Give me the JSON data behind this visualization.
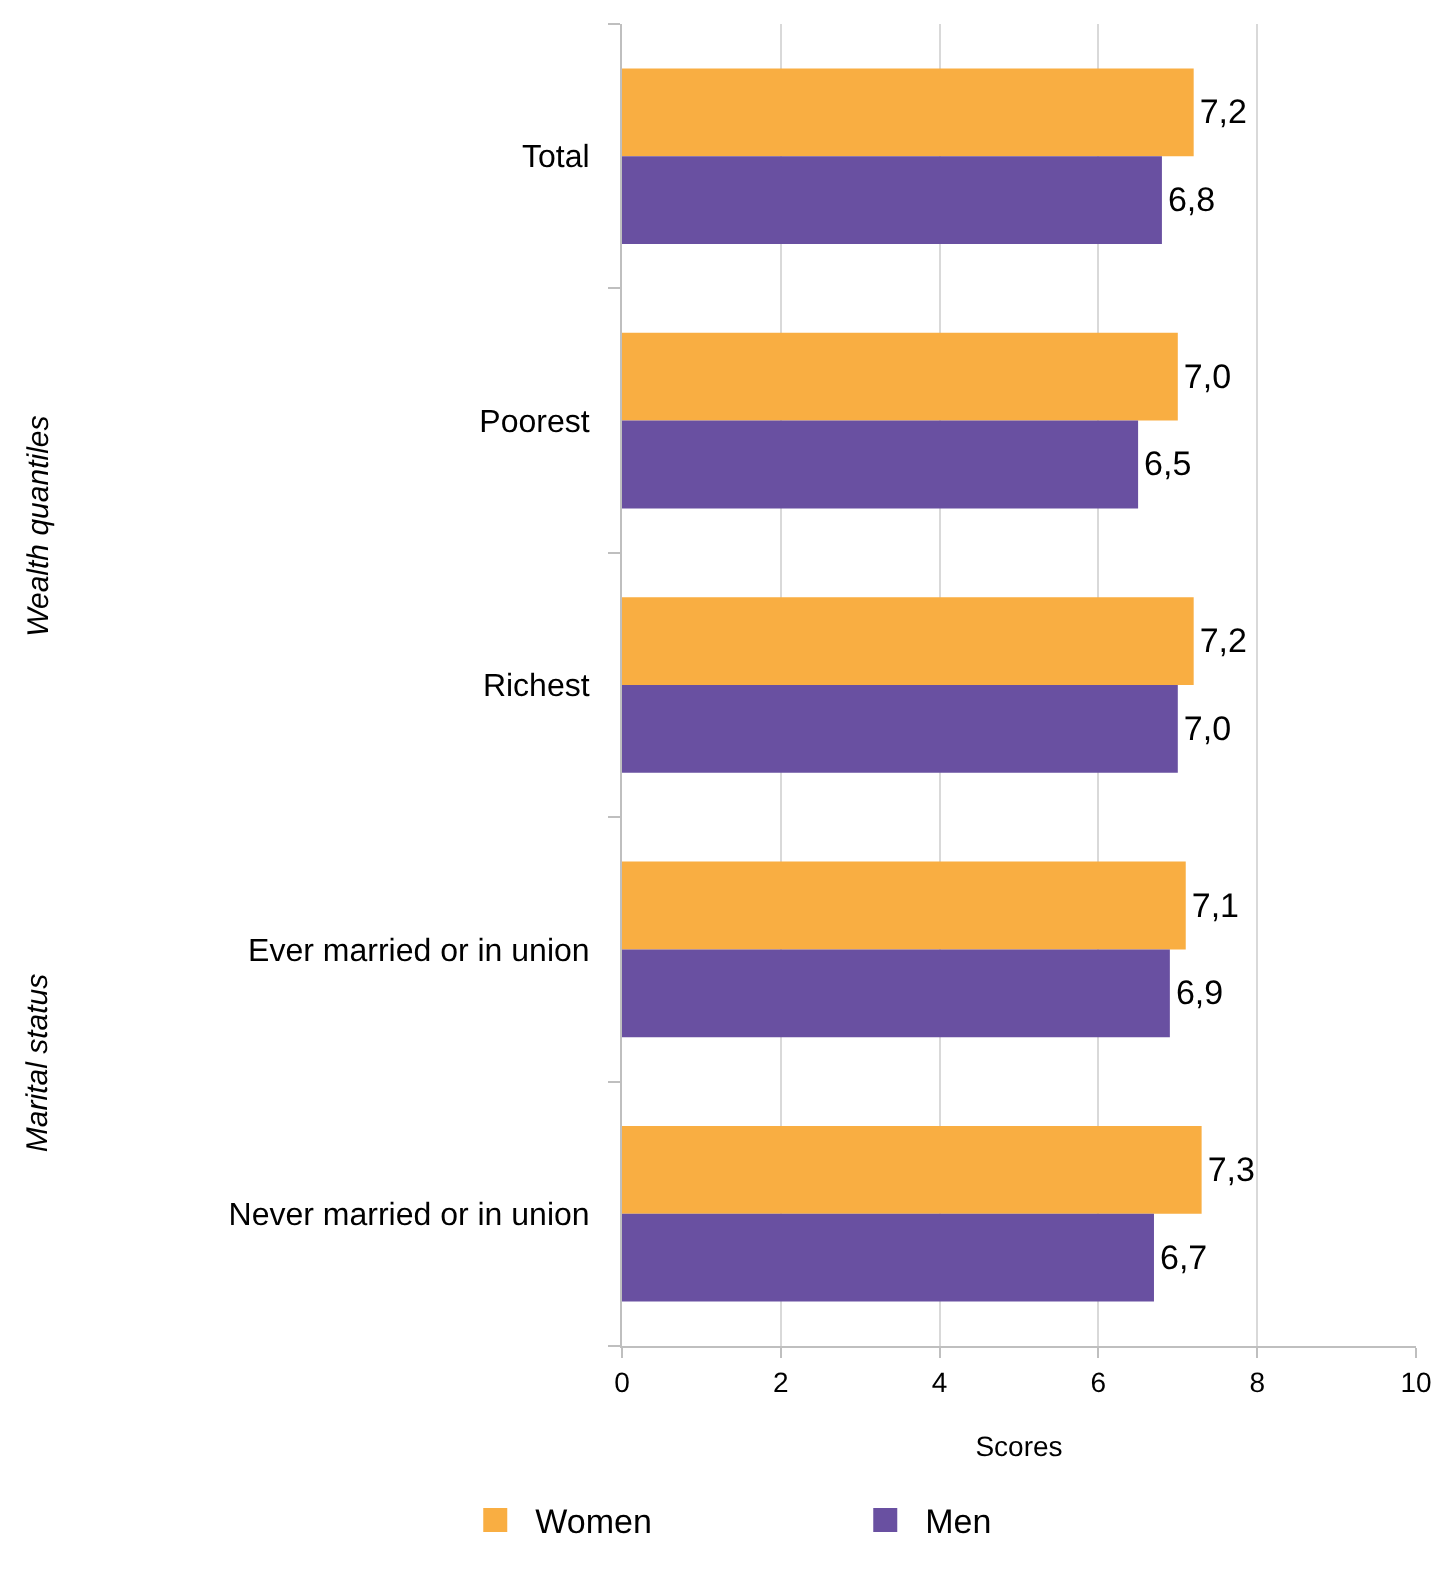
{
  "chart_data": {
    "type": "bar",
    "orientation": "horizontal",
    "categories": [
      "Total",
      "Poorest",
      "Richest",
      "Ever married or in union",
      "Never married or in union"
    ],
    "series": [
      {
        "name": "Women",
        "color": "#f9ae42",
        "values": [
          7.2,
          7.0,
          7.2,
          7.1,
          7.3
        ],
        "value_labels": [
          "7,2",
          "7,0",
          "7,2",
          "7,1",
          "7,3"
        ]
      },
      {
        "name": "Men",
        "color": "#6950a1",
        "values": [
          6.8,
          6.5,
          7.0,
          6.9,
          6.7
        ],
        "value_labels": [
          "6,8",
          "6,5",
          "7,0",
          "6,9",
          "6,7"
        ]
      }
    ],
    "xlim": [
      0,
      10
    ],
    "xticks": [
      0,
      2,
      4,
      6,
      8,
      10
    ],
    "xlabel": "Scores",
    "grid": "x",
    "legend": "bottom",
    "annotations": [
      "Wealth quantiles",
      "Marital status"
    ]
  }
}
